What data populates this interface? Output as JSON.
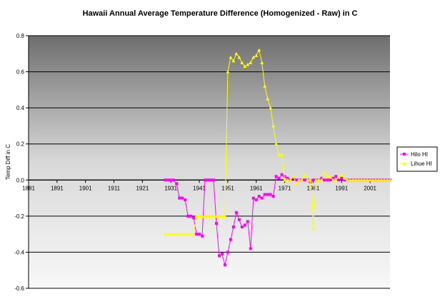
{
  "chart_data": {
    "type": "line",
    "title": "Hawaii Annual Average Temperature Difference (Homogenized - Raw) in C",
    "xlabel": "",
    "ylabel": "Temp Diff in C",
    "xlim": [
      1881,
      2008
    ],
    "ylim": [
      -0.6,
      0.8
    ],
    "x_ticks": [
      1881,
      1891,
      1901,
      1911,
      1921,
      1931,
      1941,
      1951,
      1961,
      1971,
      1981,
      1991,
      2001
    ],
    "y_ticks": [
      -0.6,
      -0.4,
      -0.2,
      0.0,
      0.2,
      0.4,
      0.6,
      0.8
    ],
    "y_tick_labels": [
      "-0.6",
      "-0.4",
      "-0.2",
      "0.0",
      "0.2",
      "0.4",
      "0.6",
      "0.8"
    ],
    "grid": "horizontal",
    "legend_position": "right",
    "series": [
      {
        "name": "Hilo HI",
        "color": "#ff00ff",
        "marker": "square",
        "points": [
          [
            1929,
            0.0
          ],
          [
            1930,
            0.0
          ],
          [
            1931,
            0.0
          ],
          [
            1932,
            0.0
          ],
          [
            1933,
            -0.02
          ],
          [
            1934,
            -0.1
          ],
          [
            1935,
            -0.1
          ],
          [
            1936,
            -0.11
          ],
          [
            1937,
            -0.2
          ],
          [
            1938,
            -0.2
          ],
          [
            1939,
            -0.21
          ],
          [
            1940,
            -0.3
          ],
          [
            1941,
            -0.3
          ],
          [
            1942,
            -0.31
          ],
          [
            1943,
            0.0
          ],
          [
            1944,
            0.0
          ],
          [
            1945,
            0.0
          ],
          [
            1946,
            0.0
          ],
          [
            1947,
            -0.24
          ],
          [
            1948,
            -0.42
          ],
          [
            1949,
            -0.41
          ],
          [
            1950,
            -0.47
          ],
          [
            1951,
            -0.4
          ],
          [
            1952,
            -0.33
          ],
          [
            1953,
            -0.26
          ],
          [
            1954,
            -0.18
          ],
          [
            1955,
            -0.22
          ],
          [
            1956,
            -0.26
          ],
          [
            1957,
            -0.25
          ],
          [
            1958,
            -0.23
          ],
          [
            1959,
            -0.38
          ],
          [
            1960,
            -0.1
          ],
          [
            1961,
            -0.11
          ],
          [
            1962,
            -0.09
          ],
          [
            1963,
            -0.1
          ],
          [
            1964,
            -0.08
          ],
          [
            1965,
            -0.08
          ],
          [
            1966,
            -0.08
          ],
          [
            1967,
            -0.09
          ],
          [
            1968,
            0.02
          ],
          [
            1969,
            0.01
          ],
          [
            1970,
            0.03
          ],
          [
            1971,
            0.02
          ],
          [
            1972,
            0.01
          ],
          [
            1973,
            0.0
          ],
          [
            1974,
            0.01
          ],
          [
            1975,
            0.0
          ],
          [
            1976,
            0.0
          ],
          [
            1977,
            0.0
          ],
          [
            1978,
            0.0
          ],
          [
            1979,
            0.0
          ],
          [
            1980,
            -0.01
          ],
          [
            1981,
            0.0
          ],
          [
            1982,
            0.0
          ],
          [
            1983,
            0.0
          ],
          [
            1984,
            0.01
          ],
          [
            1985,
            0.0
          ],
          [
            1986,
            0.0
          ],
          [
            1987,
            0.0
          ],
          [
            1988,
            0.01
          ],
          [
            1989,
            0.02
          ],
          [
            1990,
            0.0
          ],
          [
            1991,
            0.01
          ],
          [
            1992,
            0.0
          ],
          [
            1993,
            0.0
          ],
          [
            1994,
            0.0
          ],
          [
            1995,
            0.0
          ],
          [
            1996,
            0.0
          ],
          [
            1997,
            0.0
          ],
          [
            1998,
            0.0
          ],
          [
            1999,
            0.0
          ],
          [
            2000,
            0.0
          ],
          [
            2001,
            0.0
          ],
          [
            2002,
            0.0
          ],
          [
            2003,
            0.0
          ],
          [
            2004,
            0.0
          ],
          [
            2005,
            0.0
          ],
          [
            2006,
            0.0
          ],
          [
            2007,
            0.0
          ],
          [
            2008,
            0.0
          ]
        ]
      },
      {
        "name": "Lihue HI",
        "color": "#ffff00",
        "marker": "triangle",
        "points": [
          [
            1929,
            -0.3
          ],
          [
            1930,
            -0.3
          ],
          [
            1931,
            -0.3
          ],
          [
            1932,
            -0.3
          ],
          [
            1933,
            -0.3
          ],
          [
            1934,
            -0.3
          ],
          [
            1935,
            -0.3
          ],
          [
            1936,
            -0.3
          ],
          [
            1937,
            -0.3
          ],
          [
            1938,
            -0.3
          ],
          [
            1939,
            -0.3
          ],
          [
            1940,
            -0.2
          ],
          [
            1941,
            -0.2
          ],
          [
            1942,
            -0.2
          ],
          [
            1943,
            -0.2
          ],
          [
            1944,
            -0.2
          ],
          [
            1945,
            -0.2
          ],
          [
            1946,
            -0.2
          ],
          [
            1947,
            -0.2
          ],
          [
            1948,
            -0.2
          ],
          [
            1949,
            -0.2
          ],
          [
            1950,
            -0.2
          ],
          [
            1951,
            0.6
          ],
          [
            1952,
            0.68
          ],
          [
            1953,
            0.66
          ],
          [
            1954,
            0.7
          ],
          [
            1955,
            0.68
          ],
          [
            1956,
            0.65
          ],
          [
            1957,
            0.63
          ],
          [
            1958,
            0.64
          ],
          [
            1959,
            0.65
          ],
          [
            1960,
            0.68
          ],
          [
            1961,
            0.69
          ],
          [
            1962,
            0.72
          ],
          [
            1963,
            0.65
          ],
          [
            1964,
            0.52
          ],
          [
            1965,
            0.45
          ],
          [
            1966,
            0.4
          ],
          [
            1967,
            0.3
          ],
          [
            1968,
            0.2
          ],
          [
            1969,
            0.14
          ],
          [
            1970,
            0.14
          ],
          [
            1971,
            0.0
          ],
          [
            1972,
            0.0
          ],
          [
            1973,
            0.0
          ],
          [
            1974,
            0.02
          ],
          [
            1975,
            -0.02
          ],
          [
            1976,
            0.0
          ],
          [
            1977,
            0.0
          ],
          [
            1978,
            0.03
          ],
          [
            1979,
            0.0
          ],
          [
            1980,
            0.0
          ],
          [
            1981,
            -0.27
          ],
          [
            1982,
            0.0
          ],
          [
            1983,
            0.0
          ],
          [
            1984,
            0.0
          ],
          [
            1985,
            0.04
          ],
          [
            1986,
            0.02
          ],
          [
            1987,
            0.02
          ],
          [
            1988,
            0.0
          ],
          [
            1989,
            0.0
          ],
          [
            1990,
            0.02
          ],
          [
            1991,
            0.03
          ],
          [
            1992,
            0.01
          ],
          [
            1993,
            0.0
          ],
          [
            1994,
            0.0
          ],
          [
            1995,
            0.0
          ],
          [
            1996,
            0.0
          ],
          [
            1997,
            0.0
          ],
          [
            1998,
            0.0
          ],
          [
            1999,
            0.0
          ],
          [
            2000,
            0.0
          ],
          [
            2001,
            0.0
          ],
          [
            2002,
            0.0
          ],
          [
            2003,
            0.0
          ],
          [
            2004,
            0.0
          ],
          [
            2005,
            0.0
          ],
          [
            2006,
            0.0
          ],
          [
            2007,
            0.0
          ],
          [
            2008,
            0.0
          ]
        ]
      }
    ]
  }
}
